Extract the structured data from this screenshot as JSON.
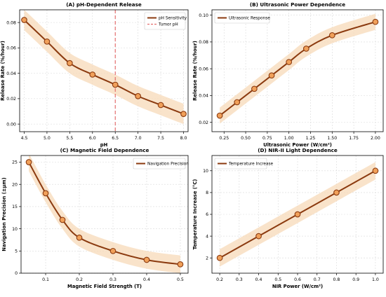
{
  "colors": {
    "line": "#8B3A0F",
    "marker_fill": "#F0A05A",
    "band": "#F7D9B8",
    "tumor_line": "#E05555"
  },
  "chart_data": [
    {
      "type": "line",
      "title": "(A) pH-Dependent Release",
      "xlabel": "pH",
      "ylabel": "Release Rate (%/hour)",
      "xlim": [
        4.4,
        8.1
      ],
      "ylim": [
        -0.006,
        0.09
      ],
      "xticks": [
        4.5,
        5.0,
        5.5,
        6.0,
        6.5,
        7.0,
        7.5,
        8.0
      ],
      "yticks": [
        0.0,
        0.02,
        0.04,
        0.06,
        0.08
      ],
      "xtick_decimals": 1,
      "ytick_decimals": 2,
      "grid": true,
      "legend_position": "top-right",
      "series": [
        {
          "name": "pH Sensitivity",
          "x": [
            4.5,
            5.0,
            5.5,
            6.0,
            6.5,
            7.0,
            7.5,
            8.0
          ],
          "y": [
            0.082,
            0.065,
            0.048,
            0.039,
            0.031,
            0.022,
            0.015,
            0.008
          ],
          "band_halfwidth": 0.008
        }
      ],
      "reference_line": {
        "name": "Tumor pH",
        "x": 6.5
      }
    },
    {
      "type": "line",
      "title": "(B) Ultrasonic Power Dependence",
      "xlabel": "Ultrasonic Power (W/cm²)",
      "ylabel": "Release Rate (%/hour)",
      "xlim": [
        0.11,
        2.09
      ],
      "ylim": [
        0.013,
        0.104
      ],
      "xticks": [
        0.25,
        0.5,
        0.75,
        1.0,
        1.25,
        1.5,
        1.75,
        2.0
      ],
      "yticks": [
        0.02,
        0.04,
        0.06,
        0.08,
        0.1
      ],
      "xtick_decimals": 2,
      "ytick_decimals": 2,
      "grid": true,
      "legend_position": "top-left",
      "series": [
        {
          "name": "Ultrasonic Response",
          "x": [
            0.2,
            0.4,
            0.6,
            0.8,
            1.0,
            1.2,
            1.5,
            2.0
          ],
          "y": [
            0.025,
            0.035,
            0.045,
            0.055,
            0.065,
            0.075,
            0.085,
            0.095
          ],
          "band_halfwidth": 0.006
        }
      ]
    },
    {
      "type": "line",
      "title": "(C) Magnetic Field Dependence",
      "xlabel": "Magnetic Field Strength (T)",
      "ylabel": "Navigation Precision (±μm)",
      "xlim": [
        0.027,
        0.523
      ],
      "ylim": [
        0,
        26.5
      ],
      "xticks": [
        0.1,
        0.2,
        0.3,
        0.4,
        0.5
      ],
      "yticks": [
        0,
        5,
        10,
        15,
        20,
        25
      ],
      "xtick_decimals": 1,
      "ytick_decimals": 0,
      "grid": true,
      "legend_position": "top-right",
      "series": [
        {
          "name": "Navigation Precision",
          "x": [
            0.05,
            0.1,
            0.15,
            0.2,
            0.3,
            0.4,
            0.5
          ],
          "y": [
            25,
            18,
            12,
            8,
            5,
            3,
            2
          ],
          "band_halfwidth": 2
        }
      ]
    },
    {
      "type": "line",
      "title": "(D) NIR-II Light Dependence",
      "xlabel": "NIR Power (W/cm²)",
      "ylabel": "Temperature Increase (°C)",
      "xlim": [
        0.16,
        1.04
      ],
      "ylim": [
        0.6,
        11.4
      ],
      "xticks": [
        0.2,
        0.3,
        0.4,
        0.5,
        0.6,
        0.7,
        0.8,
        0.9,
        1.0
      ],
      "yticks": [
        2,
        4,
        6,
        8,
        10
      ],
      "xtick_decimals": 1,
      "ytick_decimals": 0,
      "grid": true,
      "legend_position": "top-left",
      "series": [
        {
          "name": "Temperature Increase",
          "x": [
            0.2,
            0.4,
            0.6,
            0.8,
            1.0
          ],
          "y": [
            2,
            4,
            6,
            8,
            10
          ],
          "band_halfwidth": 0.8
        }
      ]
    }
  ]
}
